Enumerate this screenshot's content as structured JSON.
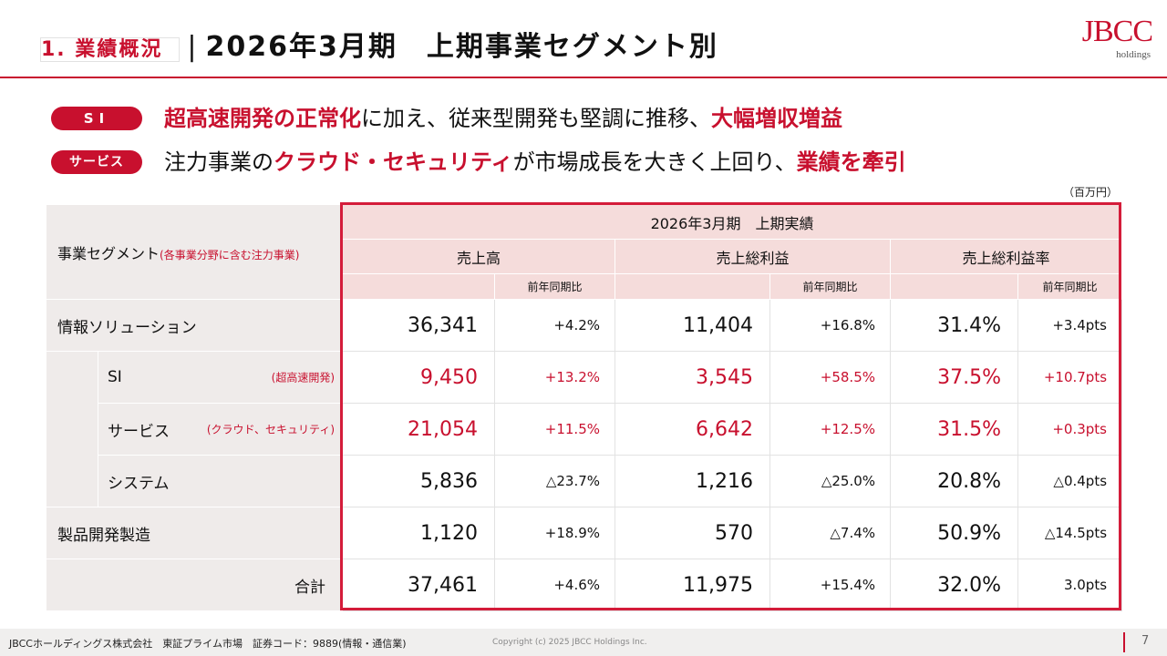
{
  "header": {
    "section_number": "1.",
    "section_title": "業績概況",
    "separator": "|",
    "subtitle": "2026年3月期　上期事業セグメント別",
    "logo_text": "JBCC",
    "logo_subtext": "holdings"
  },
  "headlines": [
    {
      "pill": "SI",
      "parts": [
        {
          "text": "超高速開発の正常化",
          "emphasis": true
        },
        {
          "text": "に加え、従来型開発も堅調に推移、",
          "emphasis": false
        },
        {
          "text": "大幅増収増益",
          "emphasis": true
        }
      ]
    },
    {
      "pill": "サービス",
      "parts": [
        {
          "text": "注力事業の",
          "emphasis": false
        },
        {
          "text": "クラウド・セキュリティ",
          "emphasis": true
        },
        {
          "text": "が市場成長を大きく上回り、",
          "emphasis": false
        },
        {
          "text": "業績を牽引",
          "emphasis": true
        }
      ]
    }
  ],
  "table": {
    "unit": "（百万円）",
    "segment_header": "事業セグメント",
    "segment_header_note": "(各事業分野に含む注力事業)",
    "period_header": "2026年3月期　上期実績",
    "columns": [
      "売上高",
      "売上総利益",
      "売上総利益率"
    ],
    "yoy_label": "前年同期比",
    "rows": [
      {
        "name": "情報ソリューション",
        "level": 0,
        "note": "",
        "highlight": false,
        "sales": "36,341",
        "sales_yoy": "+4.2%",
        "gp": "11,404",
        "gp_yoy": "+16.8%",
        "gpm": "31.4%",
        "gpm_yoy": "+3.4pts"
      },
      {
        "name": "SI",
        "level": 1,
        "note": "(超高速開発)",
        "highlight": true,
        "sales": "9,450",
        "sales_yoy": "+13.2%",
        "gp": "3,545",
        "gp_yoy": "+58.5%",
        "gpm": "37.5%",
        "gpm_yoy": "+10.7pts"
      },
      {
        "name": "サービス",
        "level": 1,
        "note": "(クラウド、セキュリティ)",
        "highlight": true,
        "sales": "21,054",
        "sales_yoy": "+11.5%",
        "gp": "6,642",
        "gp_yoy": "+12.5%",
        "gpm": "31.5%",
        "gpm_yoy": "+0.3pts"
      },
      {
        "name": "システム",
        "level": 1,
        "note": "",
        "highlight": false,
        "sales": "5,836",
        "sales_yoy": "△23.7%",
        "gp": "1,216",
        "gp_yoy": "△25.0%",
        "gpm": "20.8%",
        "gpm_yoy": "△0.4pts"
      },
      {
        "name": "製品開発製造",
        "level": 0,
        "note": "",
        "highlight": false,
        "sales": "1,120",
        "sales_yoy": "+18.9%",
        "gp": "570",
        "gp_yoy": "△7.4%",
        "gpm": "50.9%",
        "gpm_yoy": "△14.5pts"
      },
      {
        "name": "合計",
        "level": 2,
        "note": "",
        "highlight": false,
        "sales": "37,461",
        "sales_yoy": "+4.6%",
        "gp": "11,975",
        "gp_yoy": "+15.4%",
        "gpm": "32.0%",
        "gpm_yoy": "3.0pts"
      }
    ]
  },
  "footer": {
    "company": "JBCCホールディングス株式会社　東証プライム市場　証券コード：9889(情報・通信業)",
    "copyright": "Copyright (c) 2025 JBCC Holdings Inc.",
    "page_number": "7"
  },
  "colors": {
    "accent": "#C8102E",
    "header_fill": "#F5DCDB",
    "segment_fill": "#EFEBEA"
  }
}
